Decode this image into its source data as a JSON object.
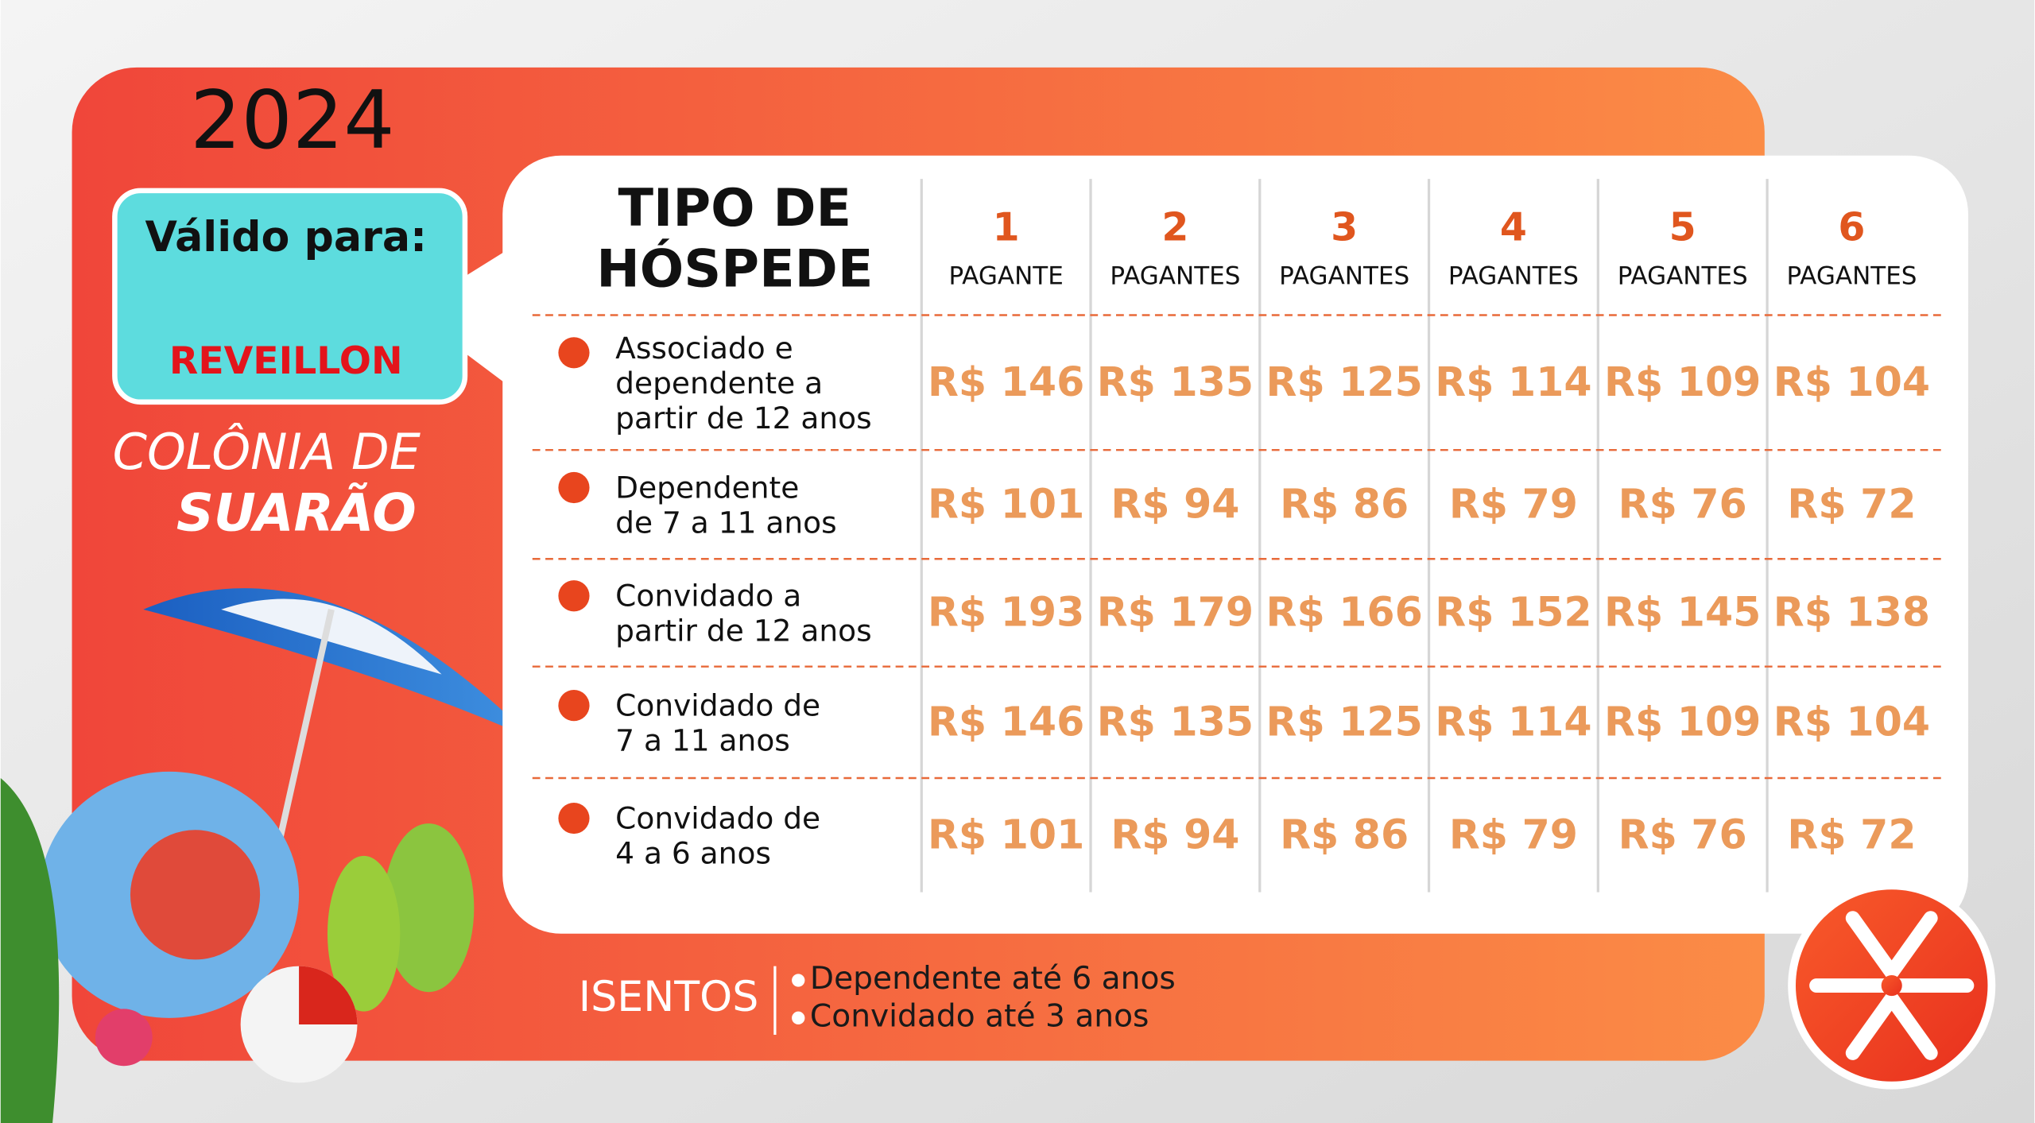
{
  "header": {
    "year": "2024",
    "valid_label": "Válido para:",
    "valid_value": "REVEILLON",
    "brand_line1": "COLÔNIA DE",
    "brand_line2": "SUARÃO"
  },
  "table": {
    "title_line1": "TIPO DE",
    "title_line2": "HÓSPEDE",
    "columns": [
      {
        "number": "1",
        "label": "PAGANTE"
      },
      {
        "number": "2",
        "label": "PAGANTES"
      },
      {
        "number": "3",
        "label": "PAGANTES"
      },
      {
        "number": "4",
        "label": "PAGANTES"
      },
      {
        "number": "5",
        "label": "PAGANTES"
      },
      {
        "number": "6",
        "label": "PAGANTES"
      }
    ],
    "rows": [
      {
        "label": [
          "Associado e",
          "dependente a",
          "partir de 12 anos"
        ],
        "prices": [
          "R$ 146",
          "R$ 135",
          "R$ 125",
          "R$ 114",
          "R$ 109",
          "R$ 104"
        ]
      },
      {
        "label": [
          "Dependente",
          "de 7 a 11 anos"
        ],
        "prices": [
          "R$ 101",
          "R$ 94",
          "R$ 86",
          "R$ 79",
          "R$ 76",
          "R$ 72"
        ]
      },
      {
        "label": [
          "Convidado a",
          "partir de 12 anos"
        ],
        "prices": [
          "R$ 193",
          "R$ 179",
          "R$ 166",
          "R$ 152",
          "R$ 145",
          "R$ 138"
        ]
      },
      {
        "label": [
          "Convidado de",
          "7 a 11 anos"
        ],
        "prices": [
          "R$ 146",
          "R$ 135",
          "R$ 125",
          "R$ 114",
          "R$ 109",
          "R$ 104"
        ]
      },
      {
        "label": [
          "Convidado de",
          "4 a 6 anos"
        ],
        "prices": [
          "R$ 101",
          "R$ 94",
          "R$ 86",
          "R$ 79",
          "R$ 76",
          "R$ 72"
        ]
      }
    ]
  },
  "exemptions": {
    "title": "ISENTOS",
    "items": [
      "Dependente até 6 anos",
      "Convidado até 3 anos"
    ]
  }
}
